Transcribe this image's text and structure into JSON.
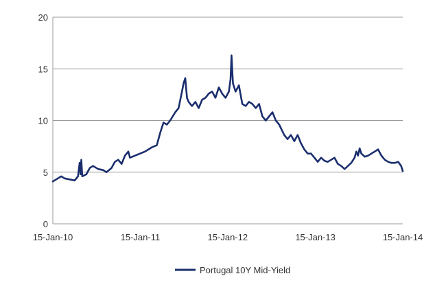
{
  "chart_data": {
    "type": "line",
    "title": "",
    "xlabel": "",
    "ylabel": "",
    "ylim": [
      0,
      20
    ],
    "yticks": [
      0,
      5,
      10,
      15,
      20
    ],
    "xlim": [
      "2010-01-15",
      "2014-01-15"
    ],
    "xticks": [
      "2010-01-15",
      "2011-01-15",
      "2012-01-15",
      "2013-01-15",
      "2014-01-15"
    ],
    "xtick_labels": [
      "15-Jan-10",
      "15-Jan-11",
      "15-Jan-12",
      "15-Jan-13",
      "15-Jan-14"
    ],
    "grid": "horizontal",
    "legend_position": "bottom",
    "series": [
      {
        "name": "Portugal 10Y Mid-Yield",
        "color": "#1a2e6e",
        "points": [
          [
            "2010-01-15",
            4.1
          ],
          [
            "2010-02-05",
            4.4
          ],
          [
            "2010-02-19",
            4.6
          ],
          [
            "2010-03-05",
            4.4
          ],
          [
            "2010-03-26",
            4.3
          ],
          [
            "2010-04-16",
            4.2
          ],
          [
            "2010-04-30",
            4.6
          ],
          [
            "2010-05-07",
            5.9
          ],
          [
            "2010-05-11",
            4.8
          ],
          [
            "2010-05-14",
            6.2
          ],
          [
            "2010-05-18",
            4.6
          ],
          [
            "2010-06-04",
            4.8
          ],
          [
            "2010-06-18",
            5.4
          ],
          [
            "2010-07-02",
            5.6
          ],
          [
            "2010-07-23",
            5.3
          ],
          [
            "2010-08-13",
            5.2
          ],
          [
            "2010-08-27",
            5.0
          ],
          [
            "2010-09-17",
            5.4
          ],
          [
            "2010-10-01",
            6.0
          ],
          [
            "2010-10-15",
            6.2
          ],
          [
            "2010-10-29",
            5.8
          ],
          [
            "2010-11-12",
            6.6
          ],
          [
            "2010-11-26",
            7.0
          ],
          [
            "2010-12-03",
            6.4
          ],
          [
            "2010-12-24",
            6.6
          ],
          [
            "2011-01-14",
            6.8
          ],
          [
            "2011-02-04",
            7.0
          ],
          [
            "2011-03-04",
            7.4
          ],
          [
            "2011-03-25",
            7.6
          ],
          [
            "2011-04-08",
            8.8
          ],
          [
            "2011-04-22",
            9.8
          ],
          [
            "2011-05-06",
            9.6
          ],
          [
            "2011-05-20",
            10.0
          ],
          [
            "2011-06-10",
            10.8
          ],
          [
            "2011-06-24",
            11.2
          ],
          [
            "2011-07-08",
            12.8
          ],
          [
            "2011-07-15",
            13.6
          ],
          [
            "2011-07-22",
            14.1
          ],
          [
            "2011-07-29",
            12.2
          ],
          [
            "2011-08-05",
            11.8
          ],
          [
            "2011-08-19",
            11.4
          ],
          [
            "2011-09-02",
            11.8
          ],
          [
            "2011-09-16",
            11.2
          ],
          [
            "2011-09-30",
            12.0
          ],
          [
            "2011-10-14",
            12.2
          ],
          [
            "2011-10-28",
            12.6
          ],
          [
            "2011-11-11",
            12.8
          ],
          [
            "2011-11-25",
            12.2
          ],
          [
            "2011-12-09",
            13.2
          ],
          [
            "2011-12-23",
            12.6
          ],
          [
            "2012-01-06",
            12.2
          ],
          [
            "2012-01-20",
            12.8
          ],
          [
            "2012-01-27",
            14.0
          ],
          [
            "2012-01-31",
            16.3
          ],
          [
            "2012-02-06",
            13.6
          ],
          [
            "2012-02-17",
            12.8
          ],
          [
            "2012-03-02",
            13.4
          ],
          [
            "2012-03-16",
            11.6
          ],
          [
            "2012-03-30",
            11.4
          ],
          [
            "2012-04-13",
            11.8
          ],
          [
            "2012-04-27",
            11.6
          ],
          [
            "2012-05-11",
            11.2
          ],
          [
            "2012-05-25",
            11.6
          ],
          [
            "2012-06-08",
            10.4
          ],
          [
            "2012-06-22",
            10.0
          ],
          [
            "2012-07-06",
            10.4
          ],
          [
            "2012-07-20",
            10.8
          ],
          [
            "2012-08-03",
            10.0
          ],
          [
            "2012-08-17",
            9.6
          ],
          [
            "2012-09-07",
            8.6
          ],
          [
            "2012-09-21",
            8.2
          ],
          [
            "2012-10-05",
            8.6
          ],
          [
            "2012-10-19",
            8.0
          ],
          [
            "2012-11-02",
            8.6
          ],
          [
            "2012-11-16",
            7.8
          ],
          [
            "2012-11-30",
            7.2
          ],
          [
            "2012-12-14",
            6.8
          ],
          [
            "2012-12-28",
            6.8
          ],
          [
            "2013-01-11",
            6.4
          ],
          [
            "2013-01-25",
            6.0
          ],
          [
            "2013-02-08",
            6.4
          ],
          [
            "2013-02-22",
            6.1
          ],
          [
            "2013-03-08",
            6.0
          ],
          [
            "2013-03-22",
            6.2
          ],
          [
            "2013-04-05",
            6.4
          ],
          [
            "2013-04-19",
            5.8
          ],
          [
            "2013-05-03",
            5.6
          ],
          [
            "2013-05-17",
            5.3
          ],
          [
            "2013-05-31",
            5.6
          ],
          [
            "2013-06-14",
            5.9
          ],
          [
            "2013-06-28",
            6.4
          ],
          [
            "2013-07-05",
            7.0
          ],
          [
            "2013-07-12",
            6.6
          ],
          [
            "2013-07-19",
            7.3
          ],
          [
            "2013-07-26",
            6.8
          ],
          [
            "2013-08-09",
            6.5
          ],
          [
            "2013-08-23",
            6.6
          ],
          [
            "2013-09-06",
            6.8
          ],
          [
            "2013-09-20",
            7.0
          ],
          [
            "2013-10-04",
            7.2
          ],
          [
            "2013-10-18",
            6.6
          ],
          [
            "2013-11-01",
            6.2
          ],
          [
            "2013-11-15",
            6.0
          ],
          [
            "2013-11-29",
            5.9
          ],
          [
            "2013-12-13",
            5.9
          ],
          [
            "2013-12-27",
            6.0
          ],
          [
            "2014-01-08",
            5.6
          ],
          [
            "2014-01-15",
            5.1
          ]
        ]
      }
    ]
  }
}
